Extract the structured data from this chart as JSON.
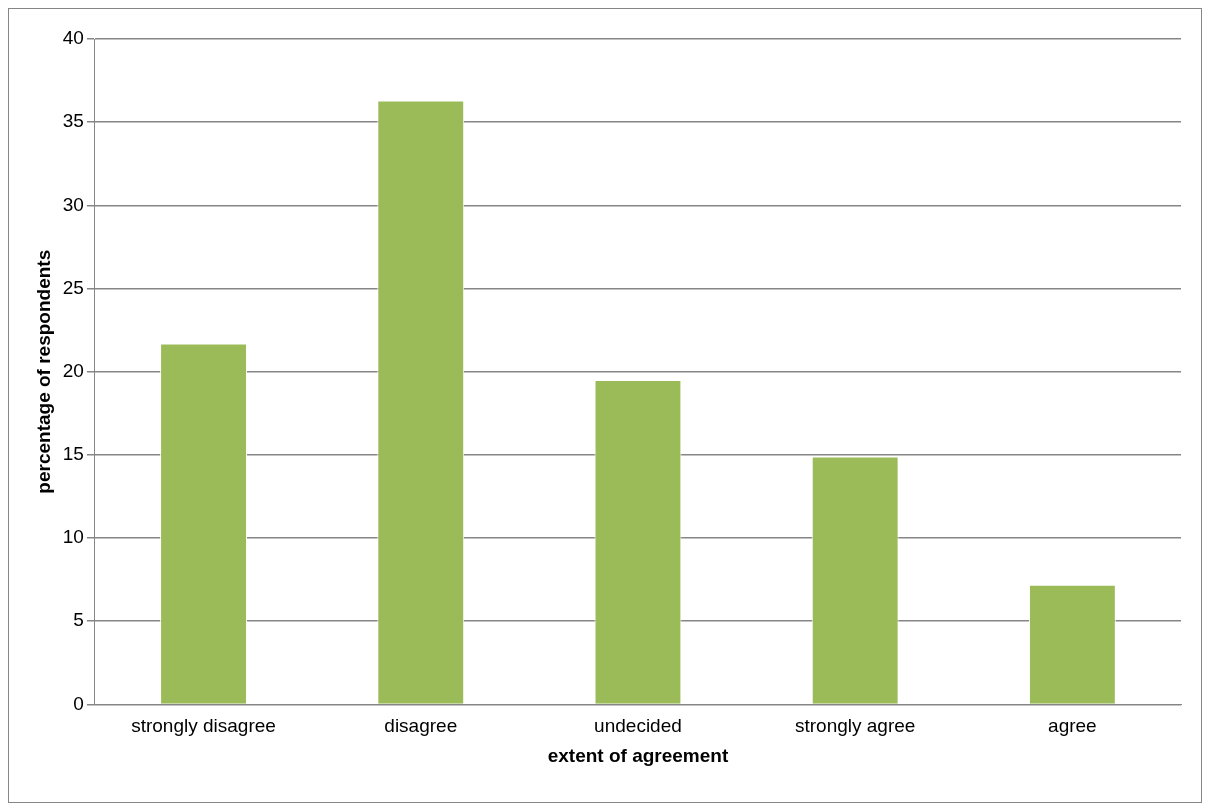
{
  "chart_data": {
    "type": "bar",
    "xlabel": "extent of agreement",
    "ylabel": "percentage of respondents",
    "categories": [
      "strongly disagree",
      "disagree",
      "undecided",
      "strongly agree",
      "agree"
    ],
    "values": [
      21.7,
      36.3,
      19.5,
      14.9,
      7.2
    ],
    "color": "#9bbb59",
    "ylim": [
      0,
      40
    ],
    "yticks": [
      0,
      5,
      10,
      15,
      20,
      25,
      30,
      35,
      40
    ],
    "grid": "y",
    "legend": false
  }
}
